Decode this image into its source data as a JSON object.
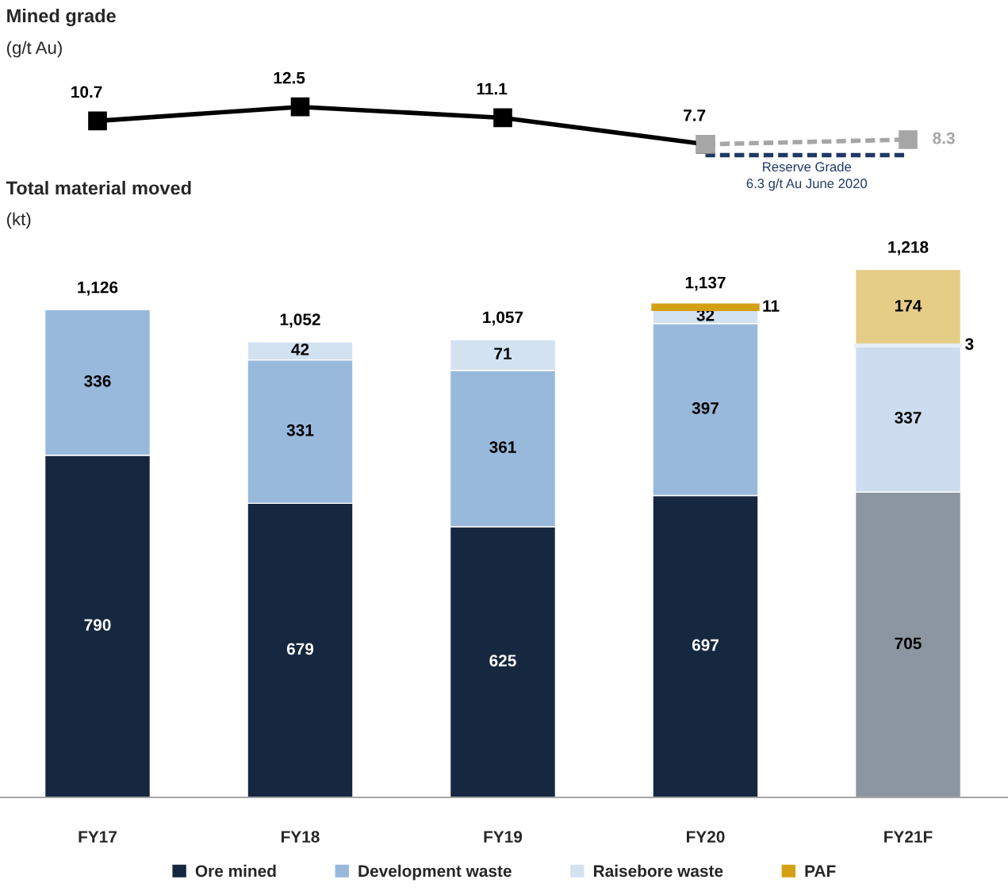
{
  "chart_data": [
    {
      "type": "line",
      "title": "Mined grade",
      "subtitle": "(g/t Au)",
      "categories": [
        null,
        null,
        null,
        null,
        null
      ],
      "tick_labels": false,
      "grid": false,
      "series": [
        {
          "color": "#000000",
          "values": [
            10.7,
            12.5,
            11.1,
            7.7,
            null
          ],
          "value_labels": [
            "10.7",
            "12.5",
            "11.1",
            "7.7",
            null
          ],
          "marker": "square",
          "line_style": "solid"
        },
        {
          "color": "#a6a6a6",
          "values": [
            null,
            null,
            null,
            7.7,
            8.3
          ],
          "value_labels": [
            null,
            null,
            null,
            null,
            "8.3"
          ],
          "marker": "square",
          "line_style": "dashed"
        },
        {
          "name": "Reserve Grade\n6.3 g/t Au June 2020",
          "color": "#1f3864",
          "values": [
            null,
            null,
            null,
            6.3,
            6.3
          ],
          "marker": "none",
          "line_style": "dashed"
        }
      ]
    },
    {
      "type": "bar",
      "stacked": true,
      "title": "Total material moved",
      "subtitle": "(kt)",
      "categories": [
        "FY17",
        "FY18",
        "FY19",
        "FY20",
        "FY21F"
      ],
      "tick_labels": "x",
      "grid": false,
      "legend": "bottom",
      "data_labels": true,
      "totals": [
        "1,126",
        "1,052",
        "1,057",
        "1,137",
        "1,218"
      ],
      "series": [
        {
          "name": "Ore mined",
          "color": "#162840",
          "colors": [
            "#162840",
            "#162840",
            "#162840",
            "#162840",
            "#8c96a0"
          ],
          "values": [
            790,
            679,
            625,
            697,
            705
          ]
        },
        {
          "name": "Development waste",
          "color": "#98b9dc",
          "colors": [
            "#98b9dc",
            "#98b9dc",
            "#98b9dc",
            "#98b9dc",
            "#cddcee"
          ],
          "values": [
            336,
            331,
            361,
            397,
            337
          ]
        },
        {
          "name": "Raisebore waste",
          "color": "#d3e2f1",
          "colors": [
            "#d3e2f1",
            "#d3e2f1",
            "#d3e2f1",
            "#d3e2f1",
            "#e8eef6"
          ],
          "values": [
            null,
            42,
            71,
            32,
            3
          ]
        },
        {
          "name": "PAF",
          "color": "#d49f12",
          "colors": [
            "#d49f12",
            "#d49f12",
            "#d49f12",
            "#d49f12",
            "#e5cd88"
          ],
          "values": [
            null,
            null,
            null,
            11,
            174
          ]
        }
      ]
    }
  ]
}
